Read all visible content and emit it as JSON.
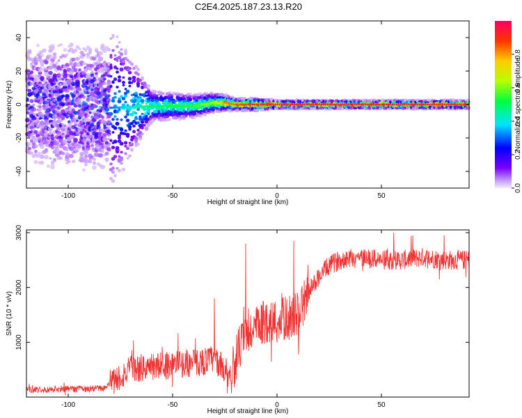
{
  "title": "C2E4.2025.187.23.13.R20",
  "chart_data": [
    {
      "type": "heatmap",
      "xlabel": "Height of straight line (km)",
      "ylabel": "Frequency (Hz)",
      "xlim": [
        -120,
        92
      ],
      "ylim": [
        -50,
        50
      ],
      "xticks": [
        -100,
        -50,
        0,
        50
      ],
      "yticks": [
        -40,
        -20,
        0,
        20,
        40
      ],
      "colorbar": {
        "label": "Normalized spectral amplitude",
        "range": [
          0,
          1
        ],
        "ticks": [
          "0.0",
          "0.2",
          "0.4",
          "0.6",
          "0.8"
        ],
        "colormap": "rainbow (violet to red)"
      },
      "ridge": {
        "description_values": {
          "x": [
            -120,
            -100,
            -80,
            -60,
            -40,
            -30,
            -25,
            -20,
            -10,
            0,
            20,
            50,
            80,
            92
          ],
          "center_freq_hz": [
            0,
            -1,
            -2,
            -1,
            -1,
            1,
            1,
            0,
            0,
            0,
            0,
            0,
            0,
            0
          ],
          "spread_hz": [
            48,
            48,
            46,
            8,
            6,
            5,
            4,
            3,
            3,
            2,
            2,
            2,
            2,
            2
          ],
          "peak_amplitude": [
            0.2,
            0.25,
            0.3,
            0.5,
            0.55,
            0.65,
            0.8,
            0.85,
            0.9,
            0.9,
            0.92,
            0.92,
            0.9,
            0.88
          ]
        }
      }
    },
    {
      "type": "line",
      "xlabel": "Height of straight line (km)",
      "ylabel": "SNR (10 * v/v)",
      "xlim": [
        -120,
        92
      ],
      "ylim": [
        0,
        3050
      ],
      "xticks": [
        -100,
        -50,
        0,
        50
      ],
      "yticks": [
        1000,
        2000,
        3000
      ],
      "series": [
        {
          "color": "#ee3333",
          "x": [
            -120,
            -110,
            -100,
            -90,
            -82,
            -78,
            -70,
            -60,
            -50,
            -40,
            -35,
            -30,
            -25,
            -22,
            -18,
            -15,
            -12,
            -8,
            -5,
            0,
            5,
            10,
            15,
            20,
            25,
            30,
            35,
            40,
            50,
            60,
            70,
            80,
            92
          ],
          "y": [
            130,
            140,
            150,
            150,
            170,
            300,
            500,
            550,
            600,
            620,
            650,
            700,
            500,
            400,
            900,
            1100,
            1200,
            1300,
            1400,
            1350,
            1450,
            1500,
            1900,
            2200,
            2400,
            2500,
            2550,
            2550,
            2500,
            2500,
            2550,
            2500,
            2500
          ]
        }
      ],
      "spikes": [
        {
          "x": -15,
          "y": 2800
        },
        {
          "x": -30,
          "y": 1800
        },
        {
          "x": 8,
          "y": 2850
        },
        {
          "x": 56,
          "y": 3000
        },
        {
          "x": 65,
          "y": 2950
        },
        {
          "x": 80,
          "y": 2950
        }
      ]
    }
  ]
}
